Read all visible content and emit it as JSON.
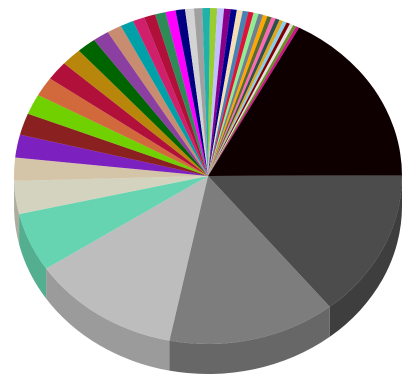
{
  "chart_data": {
    "type": "pie",
    "style": "3d",
    "title": "",
    "labels_shown": false,
    "legend": "none",
    "slices": [
      {
        "value": 70.0,
        "color": "#0e0000"
      },
      {
        "value": 58.0,
        "color": "#4c4c4c"
      },
      {
        "value": 57.0,
        "color": "#7d7d7d"
      },
      {
        "value": 51.0,
        "color": "#bdbdbd"
      },
      {
        "value": 23.0,
        "color": "#66d4b0"
      },
      {
        "value": 13.0,
        "color": "#d3d3c0"
      },
      {
        "value": 9.0,
        "color": "#d4c4a8"
      },
      {
        "value": 9.0,
        "color": "#7c20c0"
      },
      {
        "value": 8.5,
        "color": "#8a2020"
      },
      {
        "value": 8.0,
        "color": "#70d000"
      },
      {
        "value": 7.5,
        "color": "#d2693d"
      },
      {
        "value": 7.5,
        "color": "#b0103a"
      },
      {
        "value": 7.0,
        "color": "#b8860b"
      },
      {
        "value": 6.5,
        "color": "#006400"
      },
      {
        "value": 5.5,
        "color": "#8b3fa0"
      },
      {
        "value": 5.0,
        "color": "#c88c70"
      },
      {
        "value": 4.5,
        "color": "#00a0a8"
      },
      {
        "value": 4.0,
        "color": "#d0206c"
      },
      {
        "value": 3.8,
        "color": "#b0103a"
      },
      {
        "value": 3.6,
        "color": "#2e8b57"
      },
      {
        "value": 3.4,
        "color": "#ff00ff"
      },
      {
        "value": 3.2,
        "color": "#000080"
      },
      {
        "value": 3.0,
        "color": "#d3d3d3"
      },
      {
        "value": 2.8,
        "color": "#a0a0a0"
      },
      {
        "value": 2.6,
        "color": "#20b2aa"
      },
      {
        "value": 2.4,
        "color": "#9acd32"
      },
      {
        "value": 2.3,
        "color": "#c0c0ff"
      },
      {
        "value": 2.2,
        "color": "#8b008b"
      },
      {
        "value": 2.1,
        "color": "#00008b"
      },
      {
        "value": 2.0,
        "color": "#f5deb3"
      },
      {
        "value": 1.9,
        "color": "#4682b4"
      },
      {
        "value": 1.8,
        "color": "#dc143c"
      },
      {
        "value": 1.7,
        "color": "#90ee90"
      },
      {
        "value": 1.6,
        "color": "#708090"
      },
      {
        "value": 1.5,
        "color": "#ffa500"
      },
      {
        "value": 1.5,
        "color": "#556b2f"
      },
      {
        "value": 1.4,
        "color": "#ff69b4"
      },
      {
        "value": 1.4,
        "color": "#2f4f4f"
      },
      {
        "value": 1.3,
        "color": "#daa520"
      },
      {
        "value": 1.3,
        "color": "#87ceeb"
      },
      {
        "value": 1.2,
        "color": "#800000"
      },
      {
        "value": 1.2,
        "color": "#e0e0e0"
      },
      {
        "value": 1.1,
        "color": "#6b8e23"
      },
      {
        "value": 1.1,
        "color": "#c71585"
      }
    ]
  }
}
